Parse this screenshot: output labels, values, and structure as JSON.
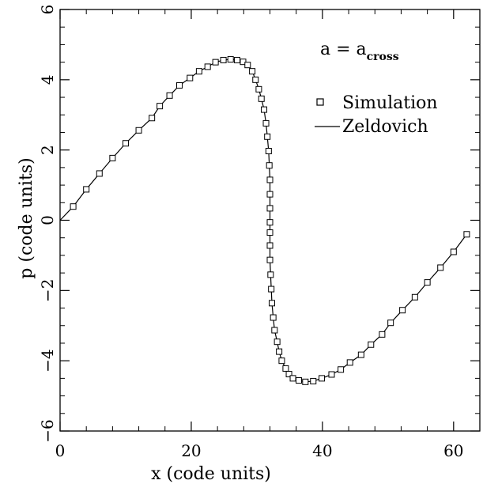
{
  "chart_data": {
    "type": "scatter",
    "xlabel": "x (code units)",
    "ylabel": "p (code units)",
    "xlim": [
      0,
      64
    ],
    "ylim": [
      -6,
      6
    ],
    "x_ticks": [
      0,
      20,
      40,
      60
    ],
    "y_ticks": [
      -6,
      -4,
      -2,
      0,
      2,
      4,
      6
    ],
    "x_tick_labels": [
      "0",
      "20",
      "40",
      "60"
    ],
    "y_tick_labels": [
      "−6",
      "−4",
      "−2",
      "0",
      "2",
      "4",
      "6"
    ],
    "x_minor_step": 4,
    "y_minor_step": 0.5,
    "grid": false,
    "annotation": {
      "base": "a  =  a",
      "subscript": "cross"
    },
    "legend_position": "top-right",
    "colors": {
      "line": "#000000",
      "marker": "#000000",
      "background": "#ffffff"
    },
    "series": [
      {
        "name": "Simulation",
        "kind": "scatter",
        "marker": "open-square",
        "points": [
          [
            2.0,
            0.39
          ],
          [
            4.0,
            0.88
          ],
          [
            6.0,
            1.33
          ],
          [
            8.0,
            1.77
          ],
          [
            10.0,
            2.19
          ],
          [
            12.0,
            2.56
          ],
          [
            14.0,
            2.91
          ],
          [
            15.2,
            3.25
          ],
          [
            16.7,
            3.55
          ],
          [
            18.2,
            3.84
          ],
          [
            19.8,
            4.05
          ],
          [
            21.2,
            4.24
          ],
          [
            22.5,
            4.37
          ],
          [
            23.7,
            4.5
          ],
          [
            24.9,
            4.56
          ],
          [
            26.0,
            4.58
          ],
          [
            27.0,
            4.56
          ],
          [
            27.9,
            4.51
          ],
          [
            28.6,
            4.42
          ],
          [
            29.3,
            4.24
          ],
          [
            29.8,
            4.0
          ],
          [
            30.3,
            3.73
          ],
          [
            30.7,
            3.46
          ],
          [
            31.1,
            3.15
          ],
          [
            31.4,
            2.76
          ],
          [
            31.6,
            2.38
          ],
          [
            31.8,
            1.97
          ],
          [
            31.9,
            1.56
          ],
          [
            32.0,
            1.15
          ],
          [
            32.0,
            0.74
          ],
          [
            32.0,
            0.34
          ],
          [
            32.0,
            -0.06
          ],
          [
            32.0,
            -0.35
          ],
          [
            32.0,
            -0.72
          ],
          [
            32.0,
            -1.13
          ],
          [
            32.1,
            -1.55
          ],
          [
            32.2,
            -1.96
          ],
          [
            32.3,
            -2.36
          ],
          [
            32.5,
            -2.77
          ],
          [
            32.7,
            -3.13
          ],
          [
            33.1,
            -3.46
          ],
          [
            33.4,
            -3.74
          ],
          [
            33.8,
            -4.0
          ],
          [
            34.4,
            -4.22
          ],
          [
            34.9,
            -4.38
          ],
          [
            35.5,
            -4.5
          ],
          [
            36.4,
            -4.56
          ],
          [
            37.4,
            -4.6
          ],
          [
            38.6,
            -4.58
          ],
          [
            39.9,
            -4.5
          ],
          [
            41.4,
            -4.39
          ],
          [
            42.8,
            -4.25
          ],
          [
            44.2,
            -4.05
          ],
          [
            45.9,
            -3.83
          ],
          [
            47.4,
            -3.54
          ],
          [
            49.1,
            -3.25
          ],
          [
            50.4,
            -2.92
          ],
          [
            52.2,
            -2.56
          ],
          [
            54.1,
            -2.19
          ],
          [
            56.0,
            -1.77
          ],
          [
            58.0,
            -1.35
          ],
          [
            60.0,
            -0.9
          ],
          [
            62.0,
            -0.4
          ]
        ]
      },
      {
        "name": "Zeldovich",
        "kind": "line",
        "points": [
          [
            0.0,
            0.0
          ],
          [
            2.0,
            0.39
          ],
          [
            4.0,
            0.88
          ],
          [
            6.0,
            1.33
          ],
          [
            8.0,
            1.77
          ],
          [
            10.0,
            2.19
          ],
          [
            12.0,
            2.56
          ],
          [
            14.0,
            2.91
          ],
          [
            15.2,
            3.25
          ],
          [
            16.7,
            3.55
          ],
          [
            18.2,
            3.84
          ],
          [
            19.8,
            4.05
          ],
          [
            21.2,
            4.24
          ],
          [
            22.5,
            4.37
          ],
          [
            23.7,
            4.5
          ],
          [
            24.9,
            4.56
          ],
          [
            26.0,
            4.58
          ],
          [
            27.0,
            4.56
          ],
          [
            27.9,
            4.51
          ],
          [
            28.6,
            4.42
          ],
          [
            29.3,
            4.24
          ],
          [
            29.8,
            4.0
          ],
          [
            30.3,
            3.73
          ],
          [
            30.7,
            3.46
          ],
          [
            31.1,
            3.15
          ],
          [
            31.4,
            2.76
          ],
          [
            31.6,
            2.38
          ],
          [
            31.8,
            1.97
          ],
          [
            31.9,
            1.56
          ],
          [
            32.0,
            1.15
          ],
          [
            32.0,
            0.74
          ],
          [
            32.0,
            0.34
          ],
          [
            32.0,
            -0.06
          ],
          [
            32.0,
            -0.35
          ],
          [
            32.0,
            -0.72
          ],
          [
            32.0,
            -1.13
          ],
          [
            32.1,
            -1.55
          ],
          [
            32.2,
            -1.96
          ],
          [
            32.3,
            -2.36
          ],
          [
            32.5,
            -2.77
          ],
          [
            32.7,
            -3.13
          ],
          [
            33.1,
            -3.46
          ],
          [
            33.4,
            -3.74
          ],
          [
            33.8,
            -4.0
          ],
          [
            34.4,
            -4.22
          ],
          [
            34.9,
            -4.38
          ],
          [
            35.5,
            -4.5
          ],
          [
            36.4,
            -4.56
          ],
          [
            37.4,
            -4.6
          ],
          [
            38.6,
            -4.58
          ],
          [
            39.9,
            -4.5
          ],
          [
            41.4,
            -4.39
          ],
          [
            42.8,
            -4.25
          ],
          [
            44.2,
            -4.05
          ],
          [
            45.9,
            -3.83
          ],
          [
            47.4,
            -3.54
          ],
          [
            49.1,
            -3.25
          ],
          [
            50.4,
            -2.92
          ],
          [
            52.2,
            -2.56
          ],
          [
            54.1,
            -2.19
          ],
          [
            56.0,
            -1.77
          ],
          [
            58.0,
            -1.35
          ],
          [
            60.0,
            -0.9
          ],
          [
            62.0,
            -0.4
          ]
        ]
      }
    ]
  }
}
